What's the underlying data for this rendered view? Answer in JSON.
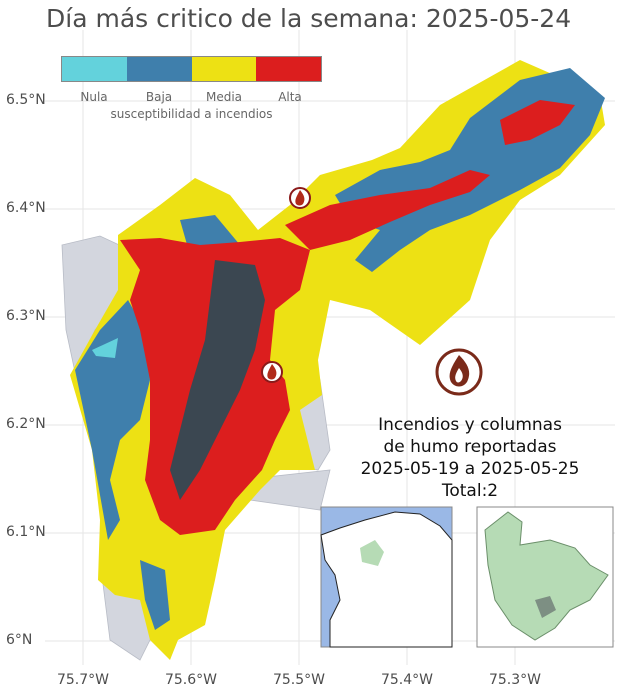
{
  "title": "Día más critico de la semana: 2025-05-24",
  "legend": {
    "caption": "susceptibilidad a incendios",
    "classes": [
      {
        "label": "Nula",
        "color": "#63d2dc"
      },
      {
        "label": "Baja",
        "color": "#3f7fac"
      },
      {
        "label": "Media",
        "color": "#ede114"
      },
      {
        "label": "Alta",
        "color": "#dc1e1e"
      }
    ]
  },
  "axes": {
    "y_ticks": [
      "6.5°N",
      "6.4°N",
      "6.3°N",
      "6.2°N",
      "6.1°N",
      "6°N"
    ],
    "x_ticks": [
      "75.7°W",
      "75.6°W",
      "75.5°W",
      "75.4°W",
      "75.3°W"
    ]
  },
  "fires_info": {
    "line1": "Incendios y columnas",
    "line2": "de humo reportadas",
    "line3": "2025-05-19 a 2025-05-25",
    "line4": "Total:2"
  },
  "icons": {
    "fire_marker": "fire-icon",
    "big_fire": "fire-badge-icon"
  },
  "colors": {
    "grid": "#e6e6e6",
    "outside_region": "#d3d6de",
    "dark_speckle": "#1f4f5a",
    "inset_sea": "#9ab8e6",
    "inset_highlight": "#b6dbb5"
  }
}
